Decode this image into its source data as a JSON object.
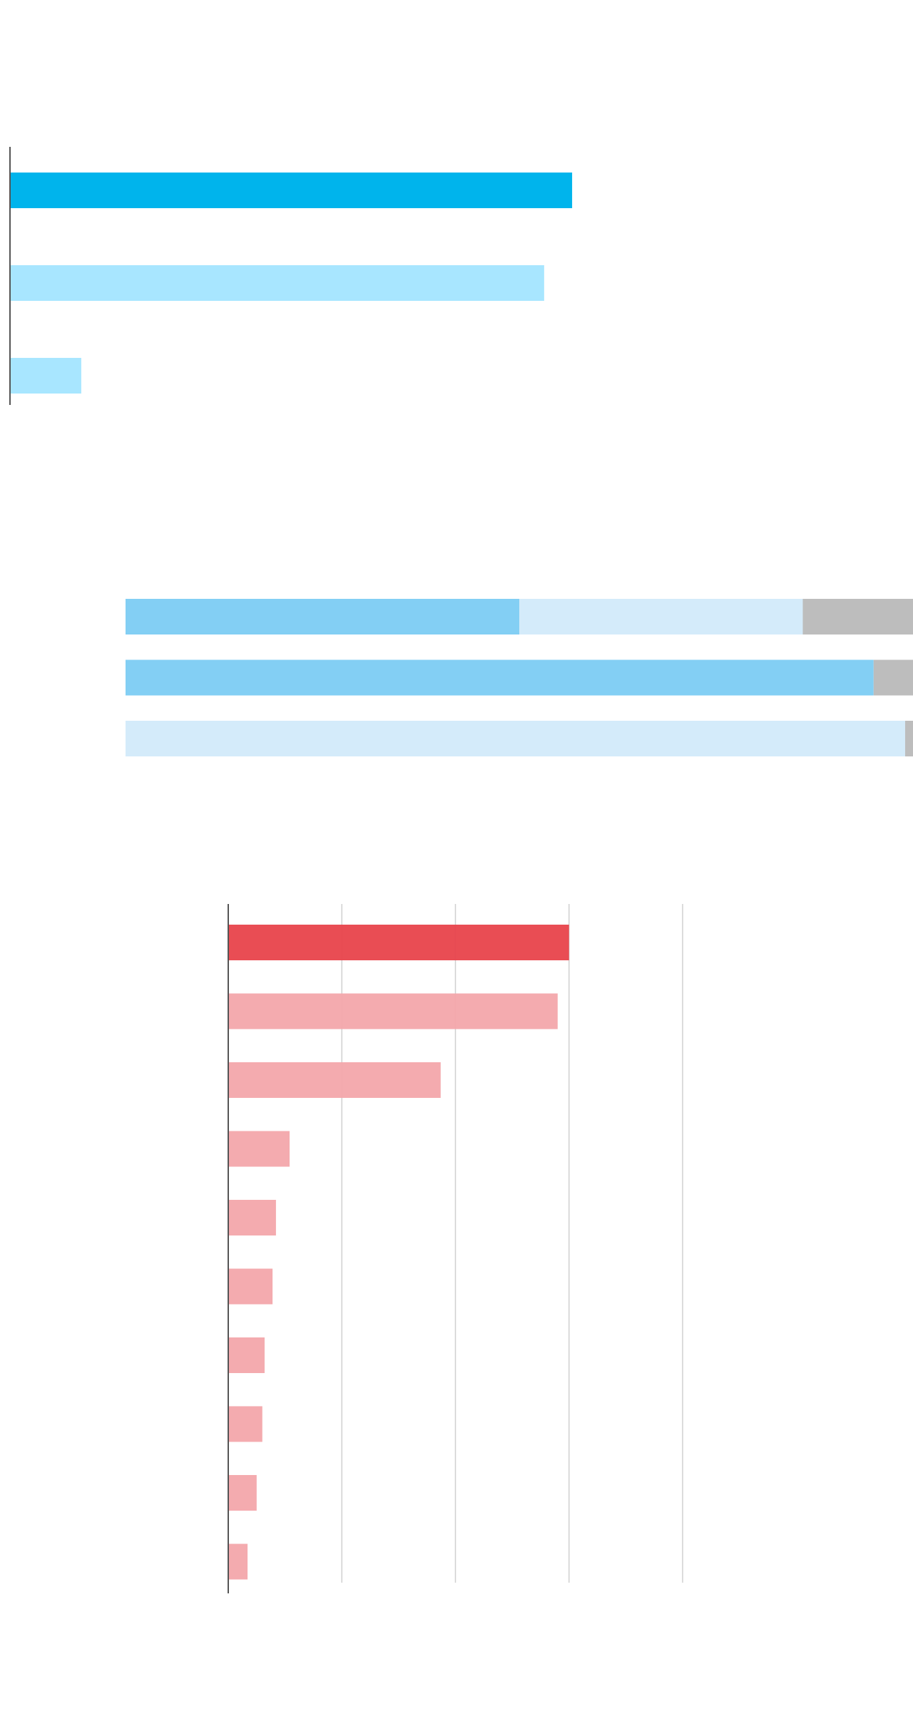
{
  "chart_data": [
    {
      "type": "bar",
      "orientation": "horizontal",
      "values": [
        62.3,
        59.2,
        7.9
      ],
      "colors": [
        "#00b4ec",
        "#a8e6ff",
        "#a8e6ff"
      ],
      "xlim": [
        0,
        100
      ]
    },
    {
      "type": "stacked_bar",
      "orientation": "horizontal",
      "series": [
        {
          "color": "#83cff4",
          "values": [
            50,
            95,
            0
          ]
        },
        {
          "color": "#d4ebfa",
          "values": [
            36,
            0,
            99
          ]
        },
        {
          "color": "#bdbdbd",
          "values": [
            14,
            5,
            1
          ]
        }
      ],
      "xlim": [
        0,
        100
      ]
    },
    {
      "type": "bar",
      "orientation": "horizontal",
      "values": [
        3.0,
        2.9,
        1.87,
        0.54,
        0.42,
        0.39,
        0.32,
        0.3,
        0.25,
        0.17
      ],
      "colors": [
        "#e8434b",
        "#f3a6ab",
        "#f3a6ab",
        "#f3a6ab",
        "#f3a6ab",
        "#f3a6ab",
        "#f3a6ab",
        "#f3a6ab",
        "#f3a6ab",
        "#f3a6ab"
      ],
      "xlim": [
        0,
        4
      ],
      "xticks": [
        0,
        1,
        2,
        3,
        4
      ],
      "grid": true
    }
  ]
}
